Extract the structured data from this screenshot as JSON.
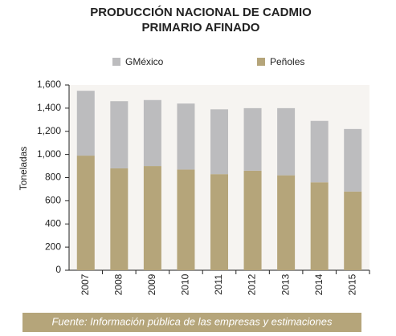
{
  "chart_data": {
    "type": "stacked_bar",
    "title_lines": [
      "PRODUCCIÓN NACIONAL DE CADMIO",
      "PRIMARIO AFINADO"
    ],
    "y_label": "Toneladas",
    "source": "Fuente: Información pública de las empresas y estimaciones",
    "categories": [
      "2007",
      "2008",
      "2009",
      "2010",
      "2011",
      "2012",
      "2013",
      "2014",
      "2015"
    ],
    "series": [
      {
        "name": "GMéxico",
        "color": "#bcbcbe",
        "values": [
          560,
          580,
          570,
          570,
          560,
          540,
          580,
          530,
          540
        ]
      },
      {
        "name": "Peñoles",
        "color": "#b5a57a",
        "values": [
          990,
          880,
          900,
          870,
          830,
          860,
          820,
          760,
          680
        ]
      }
    ],
    "ylim": [
      0,
      1600
    ],
    "yticks": [
      0,
      200,
      400,
      600,
      800,
      {
        "value": 1000,
        "label": "1,000"
      },
      {
        "value": 1200,
        "label": "1,200"
      },
      {
        "value": 1400,
        "label": "1,400"
      },
      {
        "value": 1600,
        "label": "1,600"
      }
    ]
  }
}
